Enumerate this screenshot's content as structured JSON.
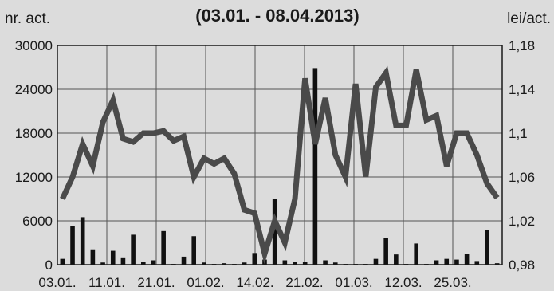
{
  "chart_data": {
    "type": "bar+line",
    "title": "(03.01. - 08.04.2013)",
    "y_left_label": "nr. act.",
    "y_right_label": "lei/act.",
    "y_left_ticks": [
      "30000",
      "24000",
      "18000",
      "12000",
      "6000",
      "0"
    ],
    "y_right_ticks": [
      "1,18",
      "1,14",
      "1,1",
      "1,06",
      "1,02",
      "0,98"
    ],
    "x_tick_labels": [
      "03.01.",
      "11.01.",
      "21.01.",
      "01.02.",
      "14.02.",
      "21.02.",
      "01.03.",
      "12.03.",
      "25.03."
    ],
    "ylim_left": [
      0,
      30000
    ],
    "ylim_right": [
      0.98,
      1.18
    ],
    "grid": true,
    "colors": {
      "bars": "#111111",
      "line": "#4a4a4a",
      "background": "#dcdcdc",
      "grid": "#555555"
    },
    "series": [
      {
        "type": "bar",
        "axis": "left",
        "values": [
          800,
          5300,
          6500,
          2100,
          300,
          1900,
          1000,
          4100,
          400,
          600,
          4600,
          100,
          1100,
          3900,
          300,
          100,
          200,
          100,
          300,
          1600,
          700,
          9000,
          600,
          400,
          400,
          26900,
          600,
          300,
          100,
          100,
          100,
          800,
          3700,
          1400,
          100,
          2900,
          100,
          600,
          800,
          700,
          1500,
          500,
          4800,
          200
        ]
      },
      {
        "type": "line",
        "axis": "right",
        "values": [
          1.04,
          1.06,
          1.09,
          1.07,
          1.11,
          1.13,
          1.095,
          1.092,
          1.1,
          1.1,
          1.102,
          1.093,
          1.097,
          1.06,
          1.077,
          1.072,
          1.077,
          1.063,
          1.03,
          1.027,
          0.99,
          1.02,
          1.0,
          1.04,
          1.15,
          1.09,
          1.132,
          1.08,
          1.06,
          1.145,
          1.06,
          1.142,
          1.155,
          1.107,
          1.107,
          1.158,
          1.112,
          1.116,
          1.07,
          1.1,
          1.1,
          1.08,
          1.054,
          1.041
        ]
      }
    ]
  }
}
